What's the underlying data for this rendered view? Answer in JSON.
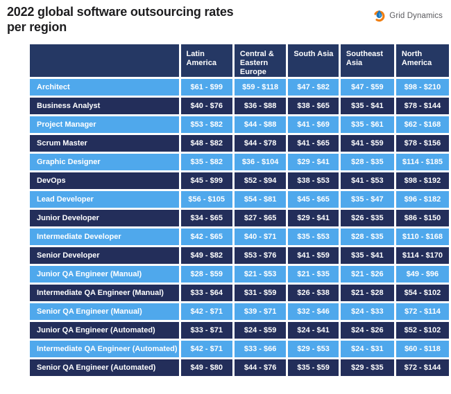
{
  "header": {
    "title_line1": "2022 global software outsourcing rates",
    "title_line2": "per region",
    "logo_text": "Grid Dynamics"
  },
  "icons": {
    "logo_icon": "grid-dynamics-droplet-flame-icon"
  },
  "colors": {
    "header_bg": "#253864",
    "dark_row_bg": "#232e5a",
    "light_row_bg": "#4fa8ec",
    "cell_gap": "#ffffff",
    "title_text": "#1d1d1f",
    "logo_text": "#5a5a5e",
    "logo_orange": "#f07f13",
    "logo_blue": "#1b75bb",
    "table_text": "#ffffff"
  },
  "chart_data": {
    "type": "table",
    "title": "2022 global software outsourcing rates per region",
    "columns": [
      "Latin America",
      "Central & Eastern Europe",
      "South Asia",
      "Southeast Asia",
      "North America"
    ],
    "rows": [
      {
        "role": "Architect",
        "rates": [
          "$61 - $99",
          "$59 - $118",
          "$47 - $82",
          "$47 - $59",
          "$98 - $210"
        ]
      },
      {
        "role": "Business Analyst",
        "rates": [
          "$40 - $76",
          "$36 - $88",
          "$38 - $65",
          "$35 - $41",
          "$78 - $144"
        ]
      },
      {
        "role": "Project Manager",
        "rates": [
          "$53 - $82",
          "$44 - $88",
          "$41 - $69",
          "$35 - $61",
          "$62 - $168"
        ]
      },
      {
        "role": "Scrum Master",
        "rates": [
          "$48 - $82",
          "$44 - $78",
          "$41 - $65",
          "$41 - $59",
          "$78 - $156"
        ]
      },
      {
        "role": "Graphic Designer",
        "rates": [
          "$35 - $82",
          "$36 - $104",
          "$29 - $41",
          "$28 - $35",
          "$114 - $185"
        ]
      },
      {
        "role": "DevOps",
        "rates": [
          "$45 - $99",
          "$52 - $94",
          "$38 - $53",
          "$41 - $53",
          "$98 - $192"
        ]
      },
      {
        "role": "Lead Developer",
        "rates": [
          "$56 - $105",
          "$54 - $81",
          "$45 - $65",
          "$35 - $47",
          "$96 - $182"
        ]
      },
      {
        "role": "Junior Developer",
        "rates": [
          "$34 - $65",
          "$27 - $65",
          "$29 - $41",
          "$26 - $35",
          "$86 - $150"
        ]
      },
      {
        "role": "Intermediate Developer",
        "rates": [
          "$42 - $65",
          "$40 - $71",
          "$35 - $53",
          "$28 - $35",
          "$110 - $168"
        ]
      },
      {
        "role": "Senior Developer",
        "rates": [
          "$49 - $82",
          "$53 - $76",
          "$41 - $59",
          "$35 - $41",
          "$114 - $170"
        ]
      },
      {
        "role": "Junior QA Engineer (Manual)",
        "rates": [
          "$28 - $59",
          "$21 - $53",
          "$21 - $35",
          "$21 - $26",
          "$49 - $96"
        ]
      },
      {
        "role": "Intermediate QA Engineer (Manual)",
        "rates": [
          "$33 - $64",
          "$31 - $59",
          "$26 - $38",
          "$21 - $28",
          "$54 - $102"
        ]
      },
      {
        "role": "Senior QA Engineer (Manual)",
        "rates": [
          "$42 - $71",
          "$39 - $71",
          "$32 - $46",
          "$24 - $33",
          "$72 - $114"
        ]
      },
      {
        "role": "Junior QA Engineer (Automated)",
        "rates": [
          "$33 - $71",
          "$24 - $59",
          "$24 - $41",
          "$24 - $26",
          "$52 - $102"
        ]
      },
      {
        "role": "Intermediate QA Engineer (Automated)",
        "rates": [
          "$42 - $71",
          "$33 - $66",
          "$29 - $53",
          "$24 - $31",
          "$60 - $118"
        ]
      },
      {
        "role": "Senior QA Engineer (Automated)",
        "rates": [
          "$49 - $80",
          "$44 - $76",
          "$35 - $59",
          "$29 - $35",
          "$72 - $144"
        ]
      }
    ],
    "row_stripe_pattern": "alternating light-blue / dark-navy, starting light",
    "legend_position": "none",
    "grid": "white gaps between all cells"
  }
}
